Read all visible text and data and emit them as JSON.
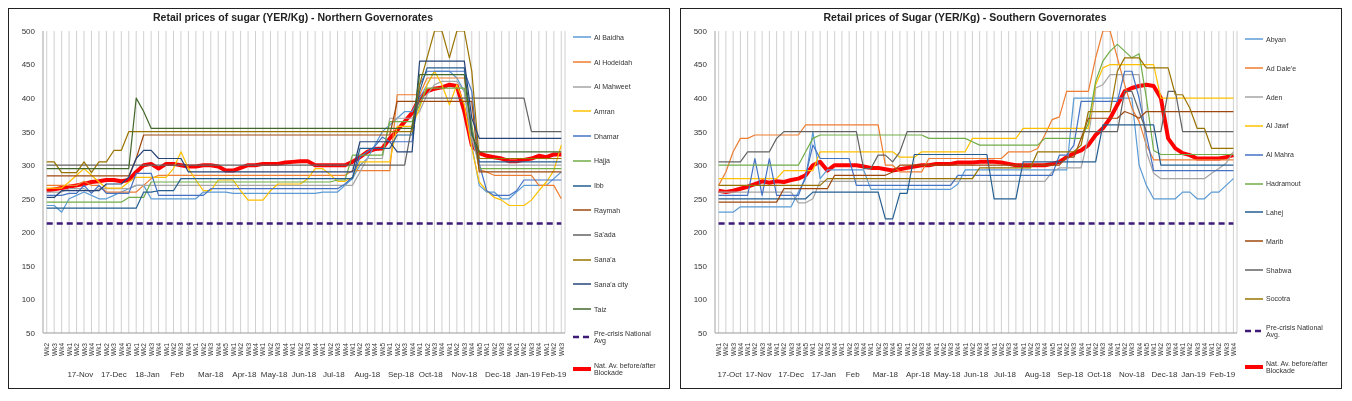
{
  "chart_data": [
    {
      "type": "line",
      "title": "Retail prices of sugar (YER/Kg) - Northern Governorates",
      "ylim": [
        50,
        500
      ],
      "yticks": [
        50,
        100,
        150,
        200,
        250,
        300,
        350,
        400,
        450,
        500
      ],
      "grid": "x",
      "legend": "right",
      "marker": "none",
      "line_style": "solid",
      "categories": [
        "Wk2",
        "Wk3",
        "Wk4",
        "Wk1",
        "Wk2",
        "Wk3",
        "Wk4",
        "Wk1",
        "Wk2",
        "Wk3",
        "Wk4",
        "Wk5",
        "Wk1",
        "Wk2",
        "Wk3",
        "Wk4",
        "Wk1",
        "Wk2",
        "Wk3",
        "Wk4",
        "Wk1",
        "Wk2",
        "Wk3",
        "Wk4",
        "Wk5",
        "Wk1",
        "Wk2",
        "Wk3",
        "Wk4",
        "Wk1",
        "Wk2",
        "Wk3",
        "Wk4",
        "Wk1",
        "Wk2",
        "Wk3",
        "Wk4",
        "Wk1",
        "Wk2",
        "Wk3",
        "Wk4",
        "Wk1",
        "Wk2",
        "Wk3",
        "Wk4",
        "Wk5",
        "Wk1",
        "Wk2",
        "Wk3",
        "Wk4",
        "Wk1",
        "Wk2",
        "Wk3",
        "Wk4",
        "Wk1",
        "Wk2",
        "Wk3",
        "Wk4",
        "Wk5",
        "Wk1",
        "Wk2",
        "Wk3",
        "Wk4",
        "Wk1",
        "Wk2",
        "Wk3",
        "Wk4",
        "Wk1",
        "Wk2",
        "Wk3"
      ],
      "annotations": [
        "17-Nov",
        "17-Dec",
        "18-Jan",
        "Feb",
        "Mar-18",
        "Apr-18",
        "May-18",
        "Jun-18",
        "Jul-18",
        "Aug-18",
        "Sep-18",
        "Oct-18",
        "Nov-18",
        "Dec-18",
        "Jan-19",
        "Feb-19"
      ],
      "series": [
        {
          "name": "Al Baidha",
          "color": "#5b9bd5",
          "values": [
            240,
            240,
            230,
            250,
            255,
            260,
            255,
            250,
            250,
            255,
            260,
            265,
            270,
            270,
            250,
            250,
            250,
            250,
            250,
            250,
            250,
            260,
            260,
            260,
            260,
            258,
            258,
            258,
            258,
            258,
            258,
            258,
            258,
            258,
            258,
            258,
            258,
            260,
            260,
            260,
            270,
            280,
            300,
            310,
            330,
            350,
            360,
            370,
            380,
            380,
            400,
            420,
            440,
            440,
            440,
            430,
            410,
            330,
            270,
            260,
            260,
            250,
            250,
            260,
            270,
            270,
            270,
            270,
            280,
            290
          ]
        },
        {
          "name": "Al Hodeidah",
          "color": "#ed7d31",
          "values": [
            270,
            270,
            270,
            270,
            270,
            276,
            270,
            270,
            260,
            260,
            260,
            260,
            260,
            270,
            280,
            285,
            285,
            285,
            285,
            285,
            285,
            285,
            285,
            285,
            285,
            285,
            285,
            285,
            285,
            285,
            285,
            285,
            285,
            285,
            285,
            285,
            285,
            285,
            285,
            285,
            285,
            292,
            292,
            292,
            292,
            292,
            292,
            405,
            405,
            405,
            405,
            430,
            430,
            430,
            430,
            430,
            430,
            355,
            293,
            290,
            285,
            285,
            285,
            285,
            285,
            285,
            270,
            270,
            270,
            250
          ]
        },
        {
          "name": "Al Mahweet",
          "color": "#a5a5a5",
          "values": [
            260,
            260,
            260,
            265,
            265,
            265,
            260,
            265,
            265,
            265,
            265,
            265,
            270,
            270,
            270,
            270,
            270,
            270,
            270,
            270,
            270,
            270,
            270,
            270,
            270,
            270,
            270,
            270,
            270,
            270,
            270,
            270,
            270,
            270,
            270,
            270,
            270,
            270,
            270,
            270,
            270,
            270,
            290,
            310,
            310,
            310,
            370,
            370,
            370,
            370,
            380,
            405,
            420,
            425,
            425,
            425,
            410,
            340,
            300,
            300,
            300,
            300,
            300,
            300,
            300,
            300,
            300,
            300,
            300,
            300
          ]
        },
        {
          "name": "Amran",
          "color": "#ffc000",
          "values": [
            266,
            266,
            266,
            275,
            285,
            295,
            285,
            275,
            266,
            266,
            266,
            275,
            282,
            282,
            282,
            282,
            282,
            295,
            320,
            295,
            278,
            262,
            262,
            278,
            278,
            278,
            262,
            248,
            248,
            248,
            262,
            272,
            272,
            272,
            272,
            280,
            295,
            295,
            286,
            276,
            276,
            282,
            305,
            305,
            305,
            305,
            305,
            358,
            358,
            358,
            385,
            420,
            440,
            420,
            390,
            420,
            390,
            325,
            275,
            262,
            252,
            248,
            240,
            240,
            240,
            248,
            262,
            275,
            292,
            330
          ]
        },
        {
          "name": "Dhamar",
          "color": "#4472c4",
          "values": [
            255,
            255,
            255,
            258,
            258,
            270,
            258,
            270,
            258,
            258,
            258,
            258,
            288,
            288,
            288,
            255,
            255,
            255,
            255,
            255,
            255,
            255,
            265,
            265,
            265,
            265,
            265,
            265,
            265,
            265,
            265,
            265,
            265,
            265,
            265,
            265,
            265,
            265,
            265,
            265,
            272,
            282,
            312,
            320,
            328,
            342,
            335,
            335,
            335,
            335,
            420,
            440,
            440,
            440,
            440,
            440,
            440,
            410,
            302,
            262,
            255,
            255,
            255,
            262,
            278,
            278,
            278,
            278,
            278,
            278
          ]
        },
        {
          "name": "Hajja",
          "color": "#70ad47",
          "values": [
            245,
            245,
            245,
            245,
            245,
            245,
            245,
            245,
            245,
            245,
            245,
            252,
            252,
            252,
            275,
            275,
            275,
            275,
            275,
            275,
            275,
            275,
            275,
            275,
            275,
            275,
            275,
            275,
            275,
            275,
            275,
            275,
            275,
            275,
            275,
            275,
            275,
            275,
            275,
            278,
            278,
            315,
            315,
            315,
            315,
            315,
            365,
            365,
            365,
            365,
            390,
            415,
            415,
            415,
            415,
            415,
            415,
            360,
            295,
            295,
            295,
            295,
            295,
            295,
            295,
            295,
            295,
            295,
            295,
            295
          ]
        },
        {
          "name": "Ibb",
          "color": "#255e91",
          "values": [
            236,
            236,
            236,
            236,
            236,
            236,
            236,
            236,
            236,
            236,
            236,
            236,
            236,
            260,
            260,
            262,
            262,
            262,
            280,
            280,
            280,
            280,
            280,
            280,
            280,
            280,
            280,
            280,
            280,
            280,
            280,
            280,
            280,
            280,
            280,
            280,
            280,
            280,
            280,
            280,
            280,
            280,
            325,
            325,
            325,
            325,
            325,
            345,
            345,
            345,
            410,
            445,
            445,
            445,
            445,
            445,
            445,
            350,
            305,
            305,
            305,
            305,
            305,
            305,
            305,
            305,
            305,
            305,
            305,
            305
          ]
        },
        {
          "name": "Raymah",
          "color": "#9e480e",
          "values": [
            284,
            284,
            284,
            284,
            284,
            284,
            284,
            284,
            284,
            284,
            284,
            284,
            310,
            345,
            345,
            345,
            345,
            345,
            345,
            345,
            345,
            345,
            345,
            345,
            345,
            345,
            345,
            345,
            345,
            345,
            345,
            345,
            345,
            345,
            345,
            345,
            345,
            345,
            345,
            345,
            345,
            345,
            345,
            345,
            345,
            345,
            345,
            395,
            395,
            395,
            395,
            395,
            395,
            395,
            395,
            395,
            395,
            395,
            290,
            290,
            290,
            290,
            290,
            290,
            290,
            290,
            290,
            290,
            290,
            290
          ]
        },
        {
          "name": "Sa'ada",
          "color": "#636363",
          "values": [
            300,
            300,
            300,
            300,
            300,
            300,
            300,
            300,
            300,
            300,
            300,
            300,
            300,
            300,
            300,
            300,
            300,
            300,
            300,
            300,
            300,
            300,
            300,
            300,
            300,
            300,
            300,
            300,
            300,
            300,
            300,
            300,
            300,
            300,
            300,
            300,
            300,
            300,
            300,
            300,
            300,
            300,
            300,
            300,
            300,
            300,
            300,
            300,
            300,
            360,
            400,
            400,
            400,
            400,
            400,
            400,
            400,
            400,
            400,
            400,
            400,
            400,
            400,
            400,
            400,
            350,
            350,
            350,
            350,
            350
          ]
        },
        {
          "name": "Sana'a",
          "color": "#997300",
          "values": [
            305,
            305,
            289,
            289,
            289,
            305,
            289,
            305,
            305,
            322,
            322,
            350,
            350,
            350,
            350,
            350,
            350,
            350,
            350,
            350,
            350,
            350,
            350,
            350,
            350,
            350,
            350,
            350,
            350,
            350,
            350,
            350,
            350,
            350,
            350,
            350,
            350,
            350,
            350,
            350,
            350,
            350,
            350,
            350,
            350,
            350,
            350,
            350,
            350,
            350,
            420,
            460,
            500,
            500,
            460,
            500,
            500,
            440,
            310,
            310,
            310,
            310,
            310,
            310,
            310,
            310,
            310,
            310,
            310,
            310
          ]
        },
        {
          "name": "Sana'a city",
          "color": "#264478",
          "values": [
            252,
            252,
            262,
            262,
            262,
            262,
            262,
            262,
            272,
            272,
            272,
            282,
            310,
            322,
            322,
            310,
            310,
            310,
            310,
            290,
            290,
            290,
            290,
            290,
            290,
            290,
            290,
            290,
            290,
            290,
            290,
            290,
            290,
            290,
            290,
            290,
            290,
            290,
            290,
            290,
            290,
            290,
            335,
            335,
            335,
            335,
            335,
            320,
            320,
            320,
            455,
            455,
            455,
            455,
            455,
            455,
            455,
            370,
            340,
            340,
            340,
            340,
            340,
            340,
            340,
            340,
            340,
            340,
            340,
            340
          ]
        },
        {
          "name": "Taiz",
          "color": "#43682b",
          "values": [
            295,
            295,
            295,
            295,
            295,
            295,
            295,
            295,
            295,
            295,
            295,
            295,
            400,
            380,
            355,
            355,
            355,
            355,
            355,
            355,
            355,
            355,
            355,
            355,
            355,
            355,
            355,
            355,
            355,
            355,
            355,
            355,
            355,
            355,
            355,
            355,
            355,
            355,
            355,
            355,
            355,
            355,
            355,
            355,
            355,
            355,
            355,
            355,
            355,
            355,
            435,
            435,
            435,
            435,
            435,
            435,
            435,
            345,
            320,
            320,
            320,
            320,
            320,
            320,
            320,
            320,
            320,
            320,
            320,
            320
          ]
        },
        {
          "name": "Pre-crisis National Avg",
          "color": "#3d1a78",
          "line_style": "dashed",
          "values": [
            213,
            213,
            213,
            213,
            213,
            213,
            213,
            213,
            213,
            213,
            213,
            213,
            213,
            213,
            213,
            213,
            213,
            213,
            213,
            213,
            213,
            213,
            213,
            213,
            213,
            213,
            213,
            213,
            213,
            213,
            213,
            213,
            213,
            213,
            213,
            213,
            213,
            213,
            213,
            213,
            213,
            213,
            213,
            213,
            213,
            213,
            213,
            213,
            213,
            213,
            213,
            213,
            213,
            213,
            213,
            213,
            213,
            213,
            213,
            213,
            213,
            213,
            213,
            213,
            213,
            213,
            213,
            213,
            213,
            213
          ]
        },
        {
          "name": "Nat. Av. before/after Blockade",
          "color": "#ff0000",
          "values": [
            262,
            264,
            266,
            268,
            270,
            272,
            275,
            276,
            278,
            278,
            276,
            278,
            290,
            300,
            302,
            295,
            302,
            302,
            300,
            298,
            298,
            300,
            300,
            298,
            292,
            292,
            296,
            300,
            300,
            302,
            302,
            302,
            304,
            305,
            306,
            306,
            300,
            300,
            300,
            300,
            300,
            305,
            312,
            320,
            324,
            325,
            340,
            352,
            365,
            378,
            400,
            410,
            414,
            416,
            420,
            418,
            380,
            330,
            318,
            314,
            312,
            310,
            306,
            306,
            308,
            310,
            314,
            312,
            316,
            316
          ]
        }
      ]
    },
    {
      "type": "line",
      "title": "Retail prices of Sugar (YER/Kg) - Southern Governorates",
      "ylim": [
        50,
        500
      ],
      "yticks": [
        50,
        100,
        150,
        200,
        250,
        300,
        350,
        400,
        450,
        500
      ],
      "grid": "x",
      "legend": "right",
      "marker": "none",
      "line_style": "solid",
      "categories": [
        "Wk1",
        "Wk2",
        "Wk3",
        "Wk4",
        "Wk1",
        "Wk2",
        "Wk3",
        "Wk4",
        "Wk1",
        "Wk2",
        "Wk3",
        "Wk4",
        "Wk5",
        "Wk1",
        "Wk2",
        "Wk3",
        "Wk4",
        "Wk1",
        "Wk2",
        "Wk3",
        "Wk4",
        "Wk1",
        "Wk2",
        "Wk3",
        "Wk4",
        "Wk5",
        "Wk1",
        "Wk2",
        "Wk3",
        "Wk4",
        "Wk1",
        "Wk2",
        "Wk3",
        "Wk4",
        "Wk1",
        "Wk2",
        "Wk3",
        "Wk4",
        "Wk1",
        "Wk2",
        "Wk3",
        "Wk4",
        "Wk1",
        "Wk2",
        "Wk3",
        "Wk4",
        "Wk5",
        "Wk1",
        "Wk2",
        "Wk3",
        "Wk4",
        "Wk1",
        "Wk2",
        "Wk3",
        "Wk4",
        "Wk1",
        "Wk2",
        "Wk3",
        "Wk4",
        "Wk5",
        "Wk1",
        "Wk2",
        "Wk3",
        "Wk4",
        "Wk1",
        "Wk2",
        "Wk3",
        "Wk4",
        "Wk1",
        "Wk2",
        "Wk3",
        "Wk4"
      ],
      "annotations": [
        "17-Oct",
        "17-Nov",
        "17-Dec",
        "17-Jan",
        "Feb",
        "Mar-18",
        "Apr-18",
        "May-18",
        "Jun-18",
        "Jul-18",
        "Aug-18",
        "Sep-18",
        "Oct-18",
        "Nov-18",
        "Dec-18",
        "Jan-19",
        "Feb-19"
      ],
      "series": [
        {
          "name": "Abyan",
          "color": "#5b9bd5",
          "values": [
            230,
            230,
            230,
            238,
            238,
            238,
            238,
            238,
            238,
            238,
            238,
            260,
            280,
            350,
            280,
            293,
            293,
            293,
            293,
            293,
            293,
            264,
            264,
            264,
            264,
            264,
            264,
            264,
            264,
            264,
            264,
            264,
            264,
            272,
            293,
            293,
            293,
            293,
            293,
            293,
            293,
            293,
            293,
            293,
            293,
            293,
            293,
            293,
            293,
            400,
            400,
            400,
            400,
            400,
            400,
            400,
            400,
            400,
            300,
            270,
            250,
            250,
            250,
            250,
            260,
            260,
            250,
            250,
            260,
            260,
            270,
            280
          ]
        },
        {
          "name": "Ad Dale'e",
          "color": "#ed7d31",
          "values": [
            270,
            290,
            320,
            340,
            340,
            345,
            345,
            345,
            345,
            345,
            345,
            345,
            360,
            360,
            360,
            360,
            360,
            360,
            360,
            360,
            360,
            360,
            360,
            300,
            300,
            290,
            290,
            290,
            290,
            310,
            310,
            310,
            310,
            310,
            310,
            310,
            310,
            310,
            310,
            310,
            320,
            320,
            320,
            320,
            325,
            345,
            368,
            372,
            410,
            410,
            410,
            410,
            460,
            500,
            500,
            460,
            420,
            385,
            365,
            330,
            308,
            308,
            308,
            308,
            308,
            308,
            308,
            308,
            308,
            308,
            308,
            308
          ]
        },
        {
          "name": "Aden",
          "color": "#a5a5a5",
          "values": [
            260,
            260,
            260,
            260,
            260,
            260,
            260,
            260,
            260,
            260,
            260,
            244,
            244,
            250,
            276,
            276,
            276,
            276,
            276,
            276,
            276,
            276,
            276,
            276,
            276,
            276,
            276,
            276,
            276,
            276,
            276,
            276,
            276,
            276,
            276,
            276,
            276,
            276,
            276,
            276,
            276,
            276,
            276,
            276,
            276,
            276,
            290,
            296,
            296,
            296,
            296,
            342,
            415,
            420,
            435,
            435,
            435,
            435,
            435,
            320,
            288,
            280,
            280,
            280,
            280,
            280,
            280,
            280,
            288,
            295,
            303,
            320
          ]
        },
        {
          "name": "Al Jawf",
          "color": "#ffc000",
          "values": [
            280,
            280,
            280,
            280,
            280,
            280,
            280,
            280,
            280,
            292,
            292,
            292,
            292,
            292,
            320,
            320,
            320,
            320,
            320,
            320,
            320,
            320,
            320,
            320,
            320,
            312,
            312,
            312,
            320,
            320,
            320,
            320,
            320,
            320,
            320,
            340,
            340,
            340,
            340,
            340,
            340,
            340,
            355,
            355,
            355,
            355,
            355,
            355,
            355,
            355,
            355,
            355,
            420,
            445,
            450,
            450,
            450,
            450,
            450,
            450,
            450,
            400,
            400,
            400,
            400,
            400,
            400,
            400,
            400,
            400,
            400,
            400
          ]
        },
        {
          "name": "Al Mahra",
          "color": "#4472c4",
          "values": [
            255,
            255,
            255,
            255,
            255,
            310,
            255,
            310,
            255,
            255,
            255,
            255,
            284,
            330,
            310,
            310,
            310,
            310,
            310,
            270,
            270,
            270,
            270,
            270,
            270,
            270,
            270,
            270,
            270,
            270,
            270,
            270,
            270,
            285,
            285,
            285,
            285,
            285,
            285,
            285,
            285,
            285,
            285,
            285,
            285,
            285,
            285,
            315,
            315,
            330,
            395,
            395,
            395,
            395,
            395,
            395,
            440,
            440,
            400,
            345,
            292,
            292,
            292,
            292,
            292,
            292,
            292,
            292,
            292,
            292,
            292,
            292
          ]
        },
        {
          "name": "Hadramout",
          "color": "#70ad47",
          "values": [
            300,
            300,
            300,
            300,
            300,
            300,
            300,
            300,
            300,
            300,
            300,
            300,
            320,
            340,
            345,
            345,
            345,
            345,
            345,
            345,
            345,
            345,
            345,
            345,
            345,
            345,
            345,
            345,
            345,
            340,
            340,
            340,
            340,
            340,
            340,
            335,
            330,
            330,
            330,
            330,
            330,
            330,
            330,
            330,
            330,
            340,
            340,
            340,
            340,
            340,
            340,
            362,
            425,
            455,
            470,
            480,
            470,
            460,
            466,
            400,
            322,
            316,
            316,
            316,
            316,
            316,
            316,
            316,
            316,
            316,
            316,
            316
          ]
        },
        {
          "name": "Lahej",
          "color": "#255e91",
          "values": [
            250,
            250,
            250,
            250,
            250,
            250,
            250,
            250,
            250,
            250,
            250,
            250,
            250,
            260,
            260,
            260,
            260,
            260,
            260,
            260,
            260,
            260,
            260,
            220,
            220,
            258,
            258,
            316,
            316,
            316,
            316,
            316,
            316,
            316,
            316,
            316,
            316,
            316,
            250,
            250,
            250,
            250,
            305,
            305,
            305,
            305,
            305,
            305,
            305,
            305,
            305,
            305,
            305,
            360,
            360,
            360,
            360,
            360,
            360,
            360,
            360,
            300,
            300,
            300,
            300,
            300,
            300,
            300,
            300,
            300,
            300,
            300
          ]
        },
        {
          "name": "Marib",
          "color": "#9e480e",
          "values": [
            245,
            245,
            245,
            245,
            245,
            245,
            245,
            245,
            245,
            265,
            265,
            265,
            265,
            265,
            265,
            265,
            285,
            285,
            285,
            285,
            285,
            285,
            285,
            285,
            290,
            300,
            300,
            300,
            300,
            300,
            300,
            300,
            300,
            300,
            300,
            300,
            300,
            300,
            300,
            300,
            300,
            300,
            300,
            300,
            300,
            300,
            300,
            300,
            312,
            312,
            340,
            370,
            370,
            370,
            370,
            370,
            380,
            376,
            370,
            380,
            380,
            380,
            380,
            380,
            380,
            380,
            380,
            380,
            380,
            380,
            380,
            380
          ]
        },
        {
          "name": "Shabwa",
          "color": "#636363",
          "values": [
            305,
            305,
            305,
            305,
            320,
            320,
            320,
            320,
            340,
            350,
            350,
            350,
            350,
            350,
            350,
            350,
            350,
            350,
            350,
            350,
            295,
            295,
            315,
            315,
            305,
            320,
            350,
            350,
            350,
            350,
            350,
            350,
            350,
            350,
            350,
            350,
            350,
            350,
            350,
            350,
            350,
            350,
            350,
            350,
            350,
            350,
            350,
            350,
            350,
            350,
            350,
            350,
            350,
            350,
            350,
            350,
            410,
            410,
            380,
            350,
            350,
            350,
            410,
            410,
            350,
            350,
            350,
            350,
            350,
            350,
            350,
            350
          ]
        },
        {
          "name": "Socotra",
          "color": "#997300",
          "values": [
            270,
            270,
            270,
            270,
            270,
            270,
            270,
            270,
            270,
            270,
            270,
            270,
            270,
            270,
            270,
            280,
            280,
            280,
            280,
            280,
            280,
            280,
            280,
            280,
            280,
            280,
            280,
            280,
            280,
            280,
            280,
            280,
            280,
            280,
            280,
            280,
            296,
            296,
            296,
            296,
            296,
            296,
            296,
            296,
            320,
            320,
            320,
            320,
            320,
            320,
            330,
            380,
            380,
            380,
            380,
            440,
            460,
            460,
            460,
            445,
            445,
            445,
            445,
            405,
            405,
            385,
            355,
            355,
            325,
            325,
            325,
            325
          ]
        },
        {
          "name": "Pre-crisis National Avg.",
          "color": "#3d1a78",
          "line_style": "dashed",
          "values": [
            213,
            213,
            213,
            213,
            213,
            213,
            213,
            213,
            213,
            213,
            213,
            213,
            213,
            213,
            213,
            213,
            213,
            213,
            213,
            213,
            213,
            213,
            213,
            213,
            213,
            213,
            213,
            213,
            213,
            213,
            213,
            213,
            213,
            213,
            213,
            213,
            213,
            213,
            213,
            213,
            213,
            213,
            213,
            213,
            213,
            213,
            213,
            213,
            213,
            213,
            213,
            213,
            213,
            213,
            213,
            213,
            213,
            213,
            213,
            213,
            213,
            213,
            213,
            213,
            213,
            213,
            213,
            213,
            213,
            213,
            213,
            213
          ]
        },
        {
          "name": "Nat. Av. before/after Blockade",
          "color": "#ff0000",
          "values": [
            262,
            260,
            262,
            265,
            268,
            272,
            276,
            274,
            276,
            275,
            278,
            280,
            285,
            300,
            305,
            292,
            300,
            300,
            300,
            300,
            298,
            296,
            296,
            294,
            292,
            294,
            296,
            298,
            300,
            300,
            302,
            302,
            302,
            304,
            304,
            304,
            305,
            305,
            305,
            304,
            302,
            300,
            300,
            300,
            300,
            300,
            302,
            305,
            312,
            318,
            322,
            330,
            345,
            355,
            370,
            390,
            410,
            415,
            418,
            420,
            418,
            400,
            340,
            325,
            318,
            315,
            310,
            310,
            310,
            310,
            312,
            315
          ]
        }
      ]
    }
  ]
}
